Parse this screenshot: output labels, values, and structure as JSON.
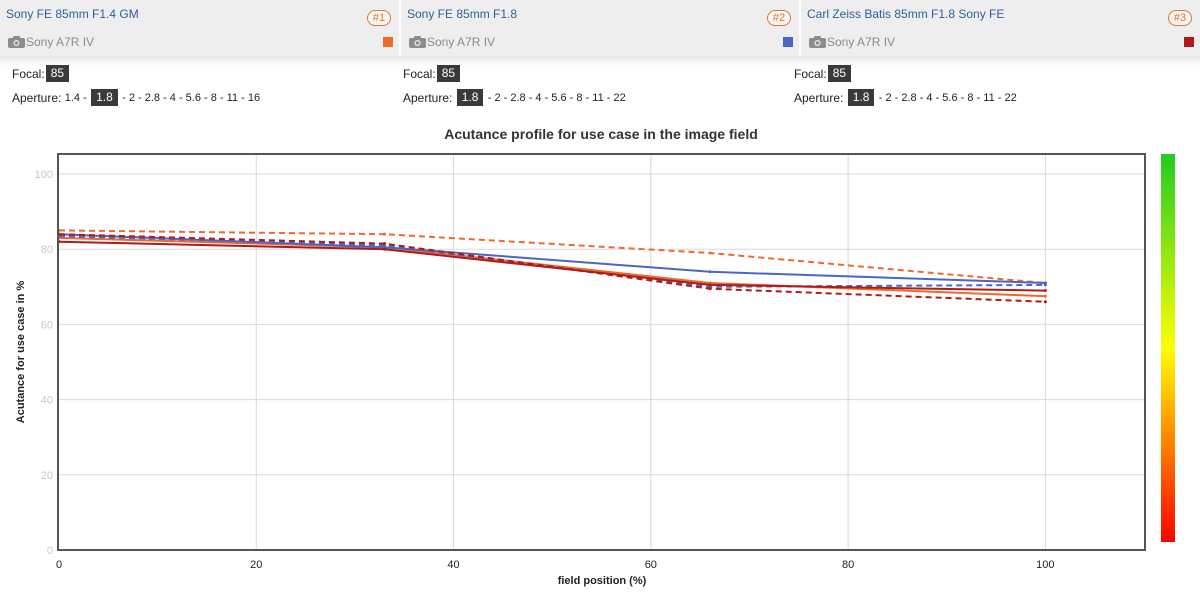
{
  "lenses": [
    {
      "name": "Sony FE 85mm F1.4 GM",
      "rank": "#1",
      "camera": "Sony A7R IV",
      "color": "#ee6a2a",
      "focal_label": "Focal:",
      "focal": "85",
      "aperture_label": "Aperture:",
      "aperture_before": "1.4 -",
      "aperture_selected": "1.8",
      "aperture_after": "- 2 - 2.8 - 4 - 5.6 - 8 - 11 - 16"
    },
    {
      "name": "Sony FE 85mm F1.8",
      "rank": "#2",
      "camera": "Sony A7R IV",
      "color": "#4a65c8",
      "focal_label": "Focal:",
      "focal": "85",
      "aperture_label": "Aperture:",
      "aperture_before": "",
      "aperture_selected": "1.8",
      "aperture_after": "- 2 - 2.8 - 4 - 5.6 - 8 - 11 - 22"
    },
    {
      "name": "Carl Zeiss Batis 85mm F1.8 Sony FE",
      "rank": "#3",
      "camera": "Sony A7R IV",
      "color": "#b01a1a",
      "focal_label": "Focal:",
      "focal": "85",
      "aperture_label": "Aperture:",
      "aperture_before": "",
      "aperture_selected": "1.8",
      "aperture_after": "- 2 - 2.8 - 4 - 5.6 - 8 - 11 - 22"
    }
  ],
  "icons": {
    "camera": "camera-icon"
  },
  "chart_data": {
    "type": "line",
    "title": "Acutance profile for use case in the image field",
    "xlabel": "field position (%)",
    "ylabel": "Acutance for use case in %",
    "xlim": [
      0,
      110
    ],
    "ylim": [
      0,
      100
    ],
    "x_ticks": [
      0,
      20,
      40,
      60,
      80,
      100
    ],
    "y_ticks": [
      0,
      20,
      40,
      60,
      80,
      100
    ],
    "grid": true,
    "legend": "none",
    "colorbar": {
      "top_color": "#22cc22",
      "mid_color": "#ffff00",
      "bottom_color": "#ff0000"
    },
    "series": [
      {
        "color": "#ee6a2a",
        "dash": true,
        "x": [
          0,
          33,
          66,
          100
        ],
        "y": [
          85,
          84,
          79,
          71
        ]
      },
      {
        "color": "#ee6a2a",
        "dash": false,
        "x": [
          0,
          33,
          66,
          100
        ],
        "y": [
          83,
          80.5,
          71,
          67.5
        ]
      },
      {
        "color": "#4a65c8",
        "dash": true,
        "x": [
          0,
          33,
          66,
          100
        ],
        "y": [
          83.5,
          81,
          70,
          70.5
        ]
      },
      {
        "color": "#4a65c8",
        "dash": false,
        "x": [
          0,
          33,
          66,
          100
        ],
        "y": [
          84,
          80.5,
          74,
          71
        ]
      },
      {
        "color": "#b01a1a",
        "dash": true,
        "x": [
          0,
          33,
          66,
          100
        ],
        "y": [
          84,
          81.5,
          69.5,
          66
        ]
      },
      {
        "color": "#b01a1a",
        "dash": false,
        "x": [
          0,
          33,
          66,
          100
        ],
        "y": [
          82,
          80,
          70.5,
          69
        ]
      }
    ]
  }
}
